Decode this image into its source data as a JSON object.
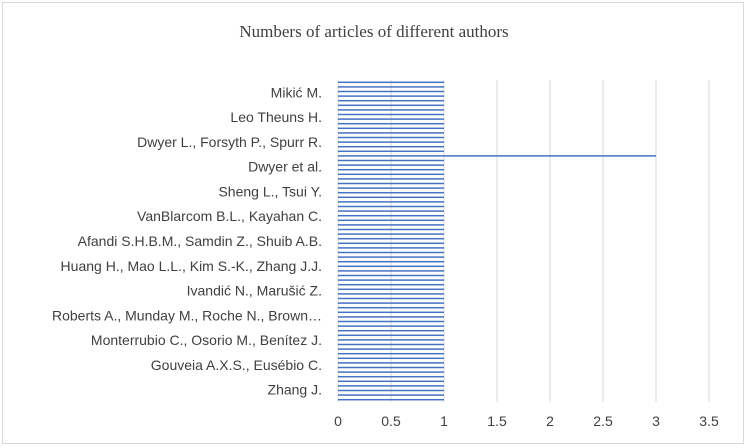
{
  "chart_data": {
    "type": "bar",
    "orientation": "horizontal",
    "title": "Numbers of articles of different authors",
    "xlabel": "",
    "ylabel": "",
    "xlim": [
      0,
      3.5
    ],
    "x_ticks": [
      "0",
      "0.5",
      "1",
      "1.5",
      "2",
      "2.5",
      "3",
      "3.5"
    ],
    "grid": "vertical",
    "legend": "none",
    "bar_color": "#4472c4",
    "row_labels": [
      "Mikić M.",
      "Leo Theuns H.",
      "Dwyer L., Forsyth P., Spurr R.",
      "Dwyer et al.",
      "Sheng L., Tsui Y.",
      "VanBlarcom B.L., Kayahan C.",
      "Afandi S.H.B.M., Samdin Z., Shuib A.B.",
      "Huang H., Mao L.L., Kim S.-K., Zhang J.J.",
      "Ivandić N., Marušić Z.",
      "Roberts A., Munday M., Roche N., Brown…",
      "Monterrubio C., Osorio M., Benítez J.",
      "Gouveia A.X.S., Eusébio C.",
      "Zhang J."
    ],
    "bar_count": 70,
    "values": [
      1,
      1,
      1,
      1,
      1,
      1,
      1,
      1,
      1,
      1,
      1,
      1,
      1,
      1,
      1,
      1,
      3,
      1,
      1,
      1,
      1,
      1,
      1,
      1,
      1,
      1,
      1,
      1,
      1,
      1,
      1,
      1,
      1,
      1,
      1,
      1,
      1,
      1,
      1,
      1,
      1,
      1,
      1,
      1,
      1,
      1,
      1,
      1,
      1,
      1,
      1,
      1,
      1,
      1,
      1,
      1,
      1,
      1,
      1,
      1,
      1,
      1,
      1,
      1,
      1,
      1,
      1,
      1,
      1,
      1
    ]
  }
}
